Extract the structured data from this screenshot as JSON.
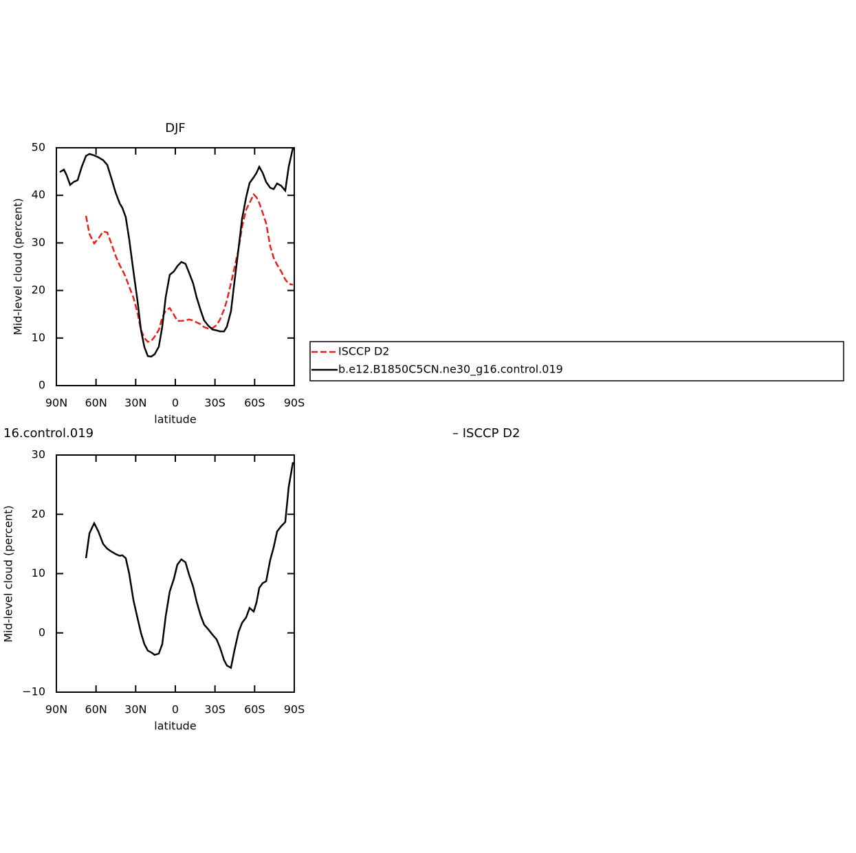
{
  "chart_data": [
    {
      "type": "line",
      "title": "DJF",
      "xlabel": "latitude",
      "ylabel": "Mid-level cloud (percent)",
      "x": [
        87.4,
        84.3,
        82.2,
        79.6,
        77.0,
        73.9,
        70.8,
        67.6,
        65.0,
        61.4,
        58.2,
        54.6,
        51.5,
        48.3,
        45.2,
        42.1,
        40.1,
        37.5,
        34.9,
        31.7,
        28.6,
        26.0,
        23.4,
        20.8,
        18.2,
        15.6,
        12.5,
        9.9,
        7.3,
        4.2,
        1.1,
        -1.5,
        -4.6,
        -7.7,
        -10.3,
        -13.5,
        -16.1,
        -19.2,
        -21.8,
        -24.9,
        -28.1,
        -31.2,
        -33.8,
        -36.9,
        -39.0,
        -42.1,
        -44.7,
        -47.9,
        -50.5,
        -53.6,
        -56.2,
        -59.3,
        -61.4,
        -63.5,
        -66.1,
        -68.7,
        -71.8,
        -74.4,
        -77.0,
        -80.1,
        -83.2,
        -85.8,
        -89.0
      ],
      "series": [
        {
          "name": "ISCCP D2",
          "color": "#e8201a",
          "dashed": true,
          "values": [
            null,
            null,
            null,
            null,
            null,
            null,
            null,
            35.7,
            31.9,
            29.9,
            30.9,
            32.4,
            32.2,
            29.8,
            27.3,
            25.3,
            24.3,
            22.8,
            20.8,
            18.5,
            15.3,
            11.7,
            10,
            9.2,
            9.4,
            10.3,
            11.7,
            14.3,
            15.8,
            16.3,
            14.9,
            13.6,
            13.6,
            13.7,
            13.9,
            13.7,
            13.3,
            12.9,
            12.3,
            12.0,
            12.1,
            12.7,
            13.9,
            16,
            17.9,
            21.5,
            24.7,
            28.8,
            33.4,
            37,
            38.4,
            40.2,
            39.6,
            38.4,
            36.3,
            34.1,
            29.3,
            26.9,
            25.4,
            24,
            22.3,
            21.4,
            21.2
          ]
        },
        {
          "name": "b.e12.B1850C5CN.ne30_g16.control.019",
          "color": "#000000",
          "dashed": false,
          "values": [
            44.9,
            45.4,
            44.2,
            42.2,
            42.8,
            43.2,
            46,
            48.3,
            48.7,
            48.4,
            48,
            47.4,
            46.4,
            43.5,
            40.6,
            38.3,
            37.4,
            35.4,
            30.8,
            24,
            17.8,
            11.7,
            8.1,
            6.2,
            6.1,
            6.6,
            8.2,
            12.4,
            18.6,
            23.3,
            24,
            25.1,
            26,
            25.6,
            23.8,
            21.5,
            18.6,
            15.8,
            13.7,
            12.6,
            11.8,
            11.6,
            11.4,
            11.4,
            12.4,
            15.6,
            21.7,
            29,
            35.1,
            39.6,
            42.6,
            43.8,
            44.7,
            46,
            44.7,
            42.8,
            41.6,
            41.3,
            42.5,
            42,
            41,
            46,
            50
          ]
        }
      ],
      "xlim": [
        90,
        -90
      ],
      "xticks": [
        {
          "value": 90,
          "label": "90N"
        },
        {
          "value": 60,
          "label": "60N"
        },
        {
          "value": 30,
          "label": "30N"
        },
        0,
        {
          "value": -30,
          "label": "30S"
        },
        {
          "value": -60,
          "label": "60S"
        },
        {
          "value": -90,
          "label": "90S"
        }
      ],
      "ylim": [
        0,
        50
      ],
      "yticks": [
        0,
        10,
        20,
        30,
        40,
        50
      ],
      "legend": "right"
    },
    {
      "type": "line",
      "title_left": "16.control.019",
      "title_right": "– ISCCP D2",
      "xlabel": "latitude",
      "ylabel": "Mid-level cloud (percent)",
      "x": [
        67.6,
        65.0,
        61.4,
        58.2,
        54.6,
        51.5,
        48.3,
        45.2,
        42.1,
        40.1,
        37.5,
        34.9,
        31.7,
        28.6,
        26.0,
        23.4,
        20.8,
        18.2,
        15.6,
        12.5,
        9.9,
        7.3,
        4.2,
        1.1,
        -1.5,
        -4.6,
        -7.7,
        -10.3,
        -13.5,
        -16.1,
        -19.2,
        -21.8,
        -24.9,
        -28.1,
        -31.2,
        -33.8,
        -36.9,
        -39.0,
        -42.1,
        -44.7,
        -47.9,
        -50.5,
        -53.6,
        -56.2,
        -59.3,
        -61.4,
        -63.5,
        -66.1,
        -68.7,
        -71.8,
        -74.4,
        -77.0,
        -80.1,
        -83.2,
        -85.8,
        -89.0
      ],
      "series": [
        {
          "color": "#000000",
          "dashed": false,
          "values": [
            12.6,
            16.8,
            18.5,
            17.1,
            15.0,
            14.2,
            13.7,
            13.3,
            13.0,
            13.1,
            12.6,
            10.0,
            5.5,
            2.5,
            0,
            -1.9,
            -3.0,
            -3.3,
            -3.7,
            -3.5,
            -1.9,
            2.8,
            7.0,
            9.1,
            11.5,
            12.4,
            11.9,
            9.9,
            7.8,
            5.3,
            2.9,
            1.4,
            0.6,
            -0.3,
            -1.1,
            -2.5,
            -4.6,
            -5.5,
            -5.9,
            -3.0,
            0.2,
            1.7,
            2.6,
            4.2,
            3.6,
            5.1,
            7.6,
            8.4,
            8.7,
            12.3,
            14.4,
            17.1,
            18,
            18.7,
            24.6,
            28.8
          ]
        }
      ],
      "xlim": [
        90,
        -90
      ],
      "xticks": [
        {
          "value": 90,
          "label": "90N"
        },
        {
          "value": 60,
          "label": "60N"
        },
        {
          "value": 30,
          "label": "30N"
        },
        0,
        {
          "value": -30,
          "label": "30S"
        },
        {
          "value": -60,
          "label": "60S"
        },
        {
          "value": -90,
          "label": "90S"
        }
      ],
      "ylim": [
        -10,
        30
      ],
      "yticks": [
        {
          "value": -10,
          "label": "−10"
        },
        0,
        10,
        20,
        30
      ]
    }
  ]
}
